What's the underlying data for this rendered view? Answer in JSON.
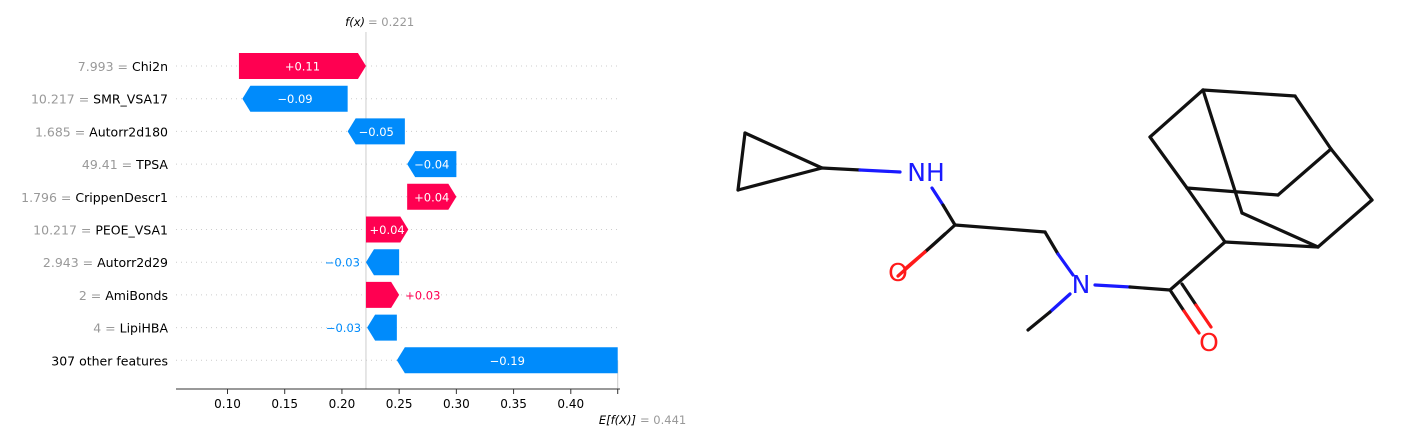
{
  "chart_data": {
    "type": "waterfall",
    "fx_label": "f(x)",
    "fx_value": "= 0.221",
    "ex_label": "E[f(X)]",
    "ex_value": "= 0.441",
    "fx": 0.221,
    "base_value": 0.441,
    "xlim": [
      0.055,
      0.443
    ],
    "ticks": [
      0.1,
      0.15,
      0.2,
      0.25,
      0.3,
      0.35,
      0.4
    ],
    "tick_labels": [
      "0.10",
      "0.15",
      "0.20",
      "0.25",
      "0.30",
      "0.35",
      "0.40"
    ],
    "colors": {
      "positive": "#ff0051",
      "negative": "#008bfb",
      "value_gray": "#999999",
      "text": "#000000",
      "grid": "#eeeeee",
      "axis": "#333333"
    },
    "features": [
      {
        "value_text": "7.993 =",
        "name": "Chi2n",
        "start": 0.11,
        "end": 0.221,
        "label": "+0.11",
        "sign": "pos"
      },
      {
        "value_text": "10.217 =",
        "name": "SMR_VSA17",
        "start": 0.205,
        "end": 0.113,
        "label": "−0.09",
        "sign": "neg"
      },
      {
        "value_text": "1.685 =",
        "name": "Autorr2d180",
        "start": 0.255,
        "end": 0.205,
        "label": "−0.05",
        "sign": "neg"
      },
      {
        "value_text": "49.41 =",
        "name": "TPSA",
        "start": 0.3,
        "end": 0.257,
        "label": "−0.04",
        "sign": "neg"
      },
      {
        "value_text": "1.796 =",
        "name": "CrippenDescr1",
        "start": 0.257,
        "end": 0.3,
        "label": "+0.04",
        "sign": "pos"
      },
      {
        "value_text": "10.217 =",
        "name": "PEOE_VSA1",
        "start": 0.221,
        "end": 0.258,
        "label": "+0.04",
        "sign": "pos"
      },
      {
        "value_text": "2.943 =",
        "name": "Autorr2d29",
        "start": 0.25,
        "end": 0.221,
        "label": "−0.03",
        "sign": "neg"
      },
      {
        "value_text": "2 =",
        "name": "AmiBonds",
        "start": 0.221,
        "end": 0.25,
        "label": "+0.03",
        "sign": "pos"
      },
      {
        "value_text": "4 =",
        "name": "LipiHBA",
        "start": 0.248,
        "end": 0.222,
        "label": "−0.03",
        "sign": "neg"
      },
      {
        "value_text": "",
        "name": "307 other features",
        "start": 0.441,
        "end": 0.248,
        "label": "−0.19",
        "sign": "neg"
      }
    ]
  },
  "molecule": {
    "atom_labels": {
      "nh": "NH",
      "n": "N",
      "o1": "O",
      "o2": "O"
    },
    "colors": {
      "bond": "#111111",
      "nitrogen": "#1a1aff",
      "oxygen": "#ff1a1a"
    }
  }
}
